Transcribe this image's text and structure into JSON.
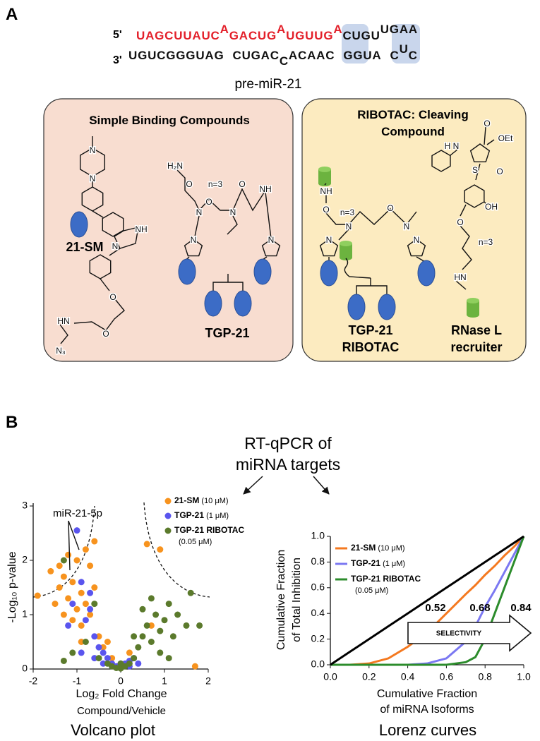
{
  "panel_a": {
    "label": "A",
    "strand_5": "5'",
    "strand_3": "3'",
    "top_strand": [
      {
        "text": "UAGCUUAUC",
        "color": "#e3202a"
      },
      {
        "text": "A",
        "color": "#e3202a",
        "raised": true
      },
      {
        "text": "GACUG",
        "color": "#e3202a"
      },
      {
        "text": "A",
        "color": "#e3202a",
        "raised": true
      },
      {
        "text": "UGUUG",
        "color": "#e3202a"
      },
      {
        "text": "A",
        "color": "#e3202a",
        "raised": true
      },
      {
        "text": "CUGU",
        "color": "#111111"
      },
      {
        "text": "UG",
        "color": "#111111",
        "raised": true
      },
      {
        "text": "AA",
        "color": "#111111",
        "raised": true
      }
    ],
    "bottom_strand": [
      {
        "text": "UGUCGGGUAG",
        "color": "#111111"
      },
      {
        "text": "CUGAC",
        "color": "#111111"
      },
      {
        "text": "C",
        "color": "#111111",
        "lowered": true
      },
      {
        "text": "ACAAC",
        "color": "#111111"
      },
      {
        "text": "GGUA",
        "color": "#111111"
      },
      {
        "text": "C",
        "color": "#111111"
      },
      {
        "text": "U",
        "color": "#111111",
        "raised": true
      },
      {
        "text": "C",
        "color": "#111111"
      }
    ],
    "rna_name": "pre-miR-21",
    "left_box": {
      "title": "Simple Binding Compounds",
      "compounds": [
        "21-SM",
        "TGP-21"
      ]
    },
    "right_box": {
      "title": [
        "RIBOTAC:  Cleaving",
        "Compound"
      ],
      "compounds": [
        [
          "TGP-21",
          "RIBOTAC"
        ],
        [
          "RNase L",
          "recruiter"
        ]
      ]
    },
    "atom_labels": [
      "N",
      "N",
      "N",
      "NH",
      "O",
      "HN",
      "O",
      "N₃",
      "H₂N",
      "O",
      "n=3",
      "O",
      "O",
      "N",
      "N",
      "NH",
      "N",
      "N",
      "NH",
      "O",
      "n=3",
      "N",
      "O",
      "N",
      "N",
      "N",
      "OEt",
      "O",
      "H N",
      "S",
      "O",
      "OH",
      "O",
      "n=3",
      "HN"
    ]
  },
  "panel_b": {
    "label": "B",
    "heading": [
      "RT-qPCR of",
      "miRNA targets"
    ]
  },
  "chart_data": [
    {
      "type": "scatter",
      "title": "Volcano plot",
      "xlabel": [
        "Log₂ Fold Change",
        "Compound/Vehicle"
      ],
      "ylabel": "-Log₁₀ p-value",
      "xlim": [
        -2,
        2
      ],
      "ylim": [
        0,
        3
      ],
      "xticks": [
        -2,
        -1,
        0,
        1,
        2
      ],
      "yticks": [
        0,
        1,
        2,
        3
      ],
      "legend": "upper right",
      "annotations": [
        "miR-21-5p"
      ],
      "series": [
        {
          "name": "21-SM (10 μM)",
          "color": "#f7931e",
          "x": [
            -1.9,
            -1.6,
            -1.5,
            -1.4,
            -1.3,
            -1.3,
            -1.2,
            -1.1,
            -1.1,
            -1.0,
            -1.0,
            -0.9,
            -0.9,
            -0.8,
            -0.8,
            -0.7,
            -0.7,
            -0.6,
            -0.5,
            -0.4,
            -0.3,
            -0.2,
            0.0,
            0.2,
            0.6,
            0.7,
            0.9,
            1.7,
            -1.2,
            -0.9,
            -0.6,
            -1.4
          ],
          "values": [
            1.35,
            1.8,
            1.2,
            1.5,
            1.0,
            1.7,
            1.3,
            0.9,
            1.6,
            1.1,
            2.0,
            1.4,
            0.8,
            1.2,
            2.2,
            1.0,
            1.9,
            2.35,
            0.6,
            0.4,
            0.5,
            0.2,
            0.05,
            0.3,
            2.3,
            0.8,
            2.2,
            0.05,
            2.1,
            0.5,
            1.5,
            1.9
          ]
        },
        {
          "name": "TGP-21 (1 μM)",
          "color": "#5a55ee",
          "x": [
            -1.0,
            -1.1,
            -0.9,
            -0.8,
            -0.7,
            -0.6,
            -0.5,
            -0.4,
            -0.3,
            -0.2,
            -0.1,
            0.0,
            0.1,
            0.2,
            0.3,
            -0.9,
            -0.6,
            -0.4,
            -0.2,
            0.0,
            0.2,
            0.4,
            -0.7,
            -1.2
          ],
          "values": [
            2.55,
            1.2,
            1.6,
            0.9,
            1.1,
            0.6,
            0.4,
            0.3,
            0.2,
            0.1,
            0.05,
            0.02,
            0.1,
            0.15,
            0.2,
            0.3,
            0.2,
            0.1,
            0.05,
            0.1,
            0.05,
            0.1,
            1.4,
            0.8
          ]
        },
        {
          "name": "TGP-21 RIBOTAC (0.05 μM)",
          "color": "#5b7a2c",
          "x": [
            -1.3,
            -1.1,
            -0.8,
            -0.5,
            -0.3,
            -0.2,
            -0.1,
            0.0,
            0.1,
            0.2,
            0.3,
            0.4,
            0.5,
            0.6,
            0.7,
            0.8,
            0.9,
            1.0,
            1.1,
            1.2,
            1.3,
            1.5,
            1.6,
            1.8,
            0.5,
            0.7,
            0.9,
            1.1,
            0.3,
            -0.6,
            -1.3,
            0.0
          ],
          "values": [
            2.0,
            0.3,
            0.5,
            0.2,
            0.1,
            0.05,
            0.02,
            0.01,
            0.05,
            0.1,
            0.2,
            0.4,
            0.6,
            0.8,
            0.5,
            1.0,
            0.7,
            0.9,
            1.2,
            0.6,
            1.0,
            0.8,
            1.4,
            0.8,
            1.1,
            1.3,
            0.3,
            0.2,
            0.6,
            1.2,
            0.15,
            0.1
          ]
        }
      ]
    },
    {
      "type": "line",
      "title": "Lorenz curves",
      "xlabel": [
        "Cumulative Fraction",
        "of miRNA Isoforms"
      ],
      "ylabel": [
        "Cumulative Fraction",
        "of Total Inhibition"
      ],
      "xlim": [
        0,
        1
      ],
      "ylim": [
        0,
        1
      ],
      "xticks": [
        {
          "value": 0,
          "label": "0.0"
        },
        0.2,
        0.4,
        0.6,
        0.8,
        {
          "value": 1,
          "label": "1.0"
        }
      ],
      "yticks": [
        {
          "value": 0,
          "label": "0.0"
        },
        0.2,
        0.4,
        0.6,
        0.8,
        {
          "value": 1,
          "label": "1.0"
        }
      ],
      "legend": "upper left",
      "annotations": [
        0.52,
        0.68,
        0.84
      ],
      "arrow_label": "SELECTIVITY",
      "x": [
        0,
        0.1,
        0.2,
        0.3,
        0.4,
        0.5,
        0.6,
        0.7,
        0.75,
        0.8,
        0.85,
        0.9,
        0.95,
        1.0
      ],
      "series": [
        {
          "name": "21-SM (10 μM)",
          "color": "#f47920",
          "values": [
            0,
            0,
            0.01,
            0.05,
            0.14,
            0.25,
            0.4,
            0.55,
            0.62,
            0.7,
            0.77,
            0.85,
            0.92,
            1
          ]
        },
        {
          "name": "TGP-21 (1 μM)",
          "color": "#7b78f2",
          "values": [
            0,
            0,
            0,
            0,
            0,
            0.01,
            0.05,
            0.18,
            0.3,
            0.45,
            0.58,
            0.72,
            0.86,
            1
          ]
        },
        {
          "name": "TGP-21 RIBOTAC (0.05 μM)",
          "color": "#2c8c2c",
          "values": [
            0,
            0,
            0,
            0,
            0,
            0,
            0,
            0.02,
            0.06,
            0.2,
            0.4,
            0.6,
            0.8,
            1
          ]
        },
        {
          "color": "#000000",
          "values": [
            0,
            0.1,
            0.2,
            0.3,
            0.4,
            0.5,
            0.6,
            0.7,
            0.75,
            0.8,
            0.85,
            0.9,
            0.95,
            1.0
          ]
        }
      ]
    }
  ]
}
